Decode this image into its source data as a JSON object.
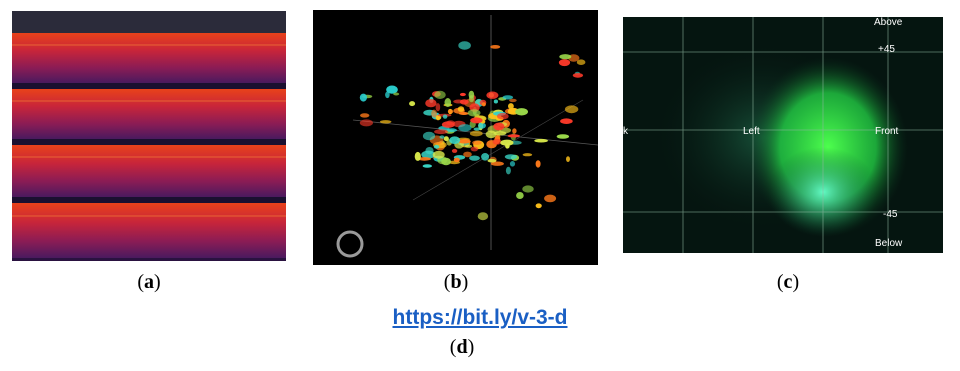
{
  "panels": {
    "a": {
      "caption_open": "(",
      "caption_letter": "a",
      "caption_close": ")"
    },
    "b": {
      "caption_open": "(",
      "caption_letter": "b",
      "caption_close": ")"
    },
    "c": {
      "caption_open": "(",
      "caption_letter": "c",
      "caption_close": ")",
      "labels": {
        "above": "Above",
        "plus45": "+45",
        "left": "Left",
        "front": "Front",
        "minus45": "-45",
        "below": "Below",
        "k": "k"
      }
    },
    "d": {
      "caption_open": "(",
      "caption_letter": "d",
      "caption_close": ")"
    }
  },
  "link": {
    "text": "https://bit.ly/v-3-d"
  },
  "colors": {
    "link": "#1a5fc4",
    "spectrogram_hot": "#e0301e",
    "spectrogram_cold": "#3a1a5a",
    "blob": "#33ff55"
  }
}
